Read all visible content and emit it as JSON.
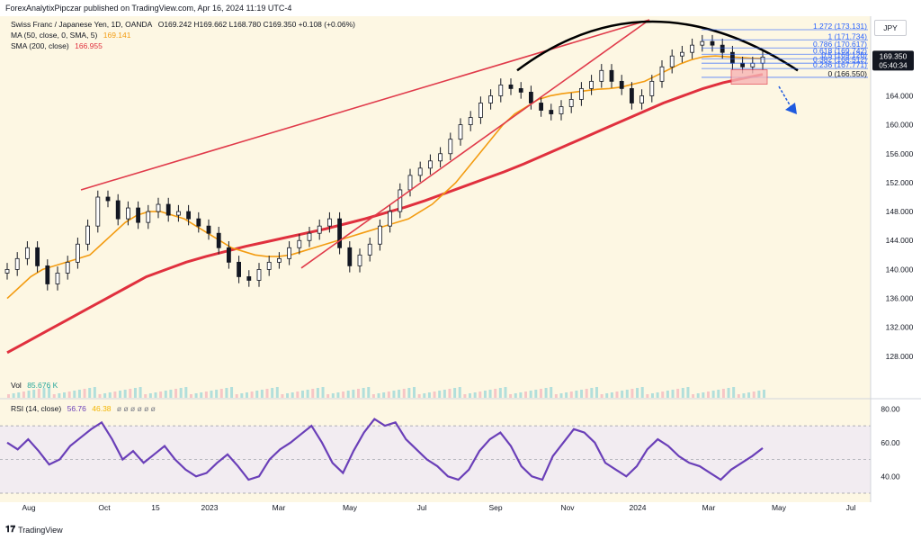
{
  "topline": "ForexAnalytixPipczar published on TradingView.com, Apr 16, 2024 11:19 UTC-4",
  "legend": {
    "symbol_line": "Swiss Franc / Japanese Yen, 1D, OANDA",
    "ohlc": "O169.242  H169.662  L168.780  C169.350  +0.108 (+0.06%)",
    "ma50_label": "MA (50, close, 0, SMA, 5)",
    "ma50_value": "169.141",
    "sma200_label": "SMA (200, close)",
    "sma200_value": "166.955",
    "vol_label": "Vol",
    "vol_value": "85.676 K",
    "rsi_label": "RSI (14, close)",
    "rsi_value_1": "56.76",
    "rsi_value_2": "46.38",
    "rsi_extra": "ø ø ø ø ø ø"
  },
  "currency_button": "JPY",
  "price_label": "169.350",
  "countdown_label": "05:40:34",
  "footer_text": "TradingView",
  "colors": {
    "price_bars": "#131722",
    "ma50": "#f39c12",
    "sma200": "#e0303e",
    "channel": "#e03a4a",
    "arc": "#000000",
    "rsi": "#6a3fb8",
    "rsi_band": "#ede7f6",
    "fib": "#2962ff",
    "arrow": "#1e5adf",
    "background": "#fdf7e3"
  },
  "fib_levels": [
    {
      "ratio": "1.272",
      "price": 173.131,
      "label": "1.272 (173.131)"
    },
    {
      "ratio": "1",
      "price": 171.734,
      "label": "1 (171.734)"
    },
    {
      "ratio": "0.786",
      "price": 170.617,
      "label": "0.786 (170.617)"
    },
    {
      "ratio": "0.618",
      "price": 169.742,
      "label": "0.618 (169.742)"
    },
    {
      "ratio": "0.5",
      "price": 169.126,
      "label": "0.5 (169.126)"
    },
    {
      "ratio": "0.382",
      "price": 168.512,
      "label": "0.382 (168.512)"
    },
    {
      "ratio": "0.236",
      "price": 167.771,
      "label": "0.236 (167.771)"
    },
    {
      "ratio": "0",
      "price": 166.55,
      "label": "0 (166.550)"
    }
  ],
  "chart_data": {
    "type": "candlestick",
    "title": "Swiss Franc / Japanese Yen, 1D, OANDA",
    "x_ticks": [
      "Aug",
      "Oct",
      "15",
      "2023",
      "Mar",
      "May",
      "Jul",
      "Sep",
      "Nov",
      "2024",
      "Mar",
      "May",
      "Jul"
    ],
    "y_ticks": [
      "128.000",
      "132.000",
      "136.000",
      "140.000",
      "144.000",
      "148.000",
      "152.000",
      "156.000",
      "160.000",
      "164.000"
    ],
    "ylim": [
      125,
      175
    ],
    "rsi_ticks": [
      "40.00",
      "60.00",
      "80.00"
    ],
    "rsi_ylim": [
      30,
      85
    ],
    "close": [
      140,
      141.5,
      143,
      140.5,
      138,
      139.5,
      141,
      143.5,
      146,
      150,
      149.5,
      147,
      148.5,
      146.5,
      148,
      149,
      147.5,
      148,
      147,
      146,
      145,
      143,
      141,
      139,
      138.5,
      140,
      141,
      141.5,
      143,
      144,
      145,
      146,
      147,
      143,
      140.5,
      142,
      143.5,
      146,
      148,
      151,
      153,
      154,
      155,
      156,
      158,
      160,
      161,
      163,
      164,
      165.5,
      165,
      164.5,
      163,
      162,
      161.5,
      162.5,
      163.5,
      165,
      166,
      167.5,
      166,
      165,
      163,
      164,
      166,
      168,
      169.5,
      170,
      171,
      171.5,
      171,
      170,
      168.5,
      168,
      168.5,
      169.35
    ],
    "ma50": [
      136,
      137.5,
      139,
      140,
      140.5,
      141,
      141.5,
      142,
      143.5,
      145,
      146.5,
      147.5,
      148,
      148,
      147.5,
      147,
      146,
      145,
      144,
      143,
      142.5,
      142,
      141.8,
      141.8,
      142,
      142.5,
      143,
      143.5,
      144,
      144.5,
      145,
      145.5,
      146,
      146.5,
      147,
      148,
      149,
      150.5,
      152,
      154,
      156,
      158,
      160,
      161.5,
      162.5,
      163.5,
      164,
      164.3,
      164.5,
      164.7,
      164.9,
      165,
      165.2,
      165.6,
      166,
      166.8,
      167.6,
      168.4,
      169,
      169.4,
      169.5,
      169.4,
      169.3,
      169.2,
      169.141
    ],
    "sma200": [
      128.5,
      130,
      131.5,
      133,
      134.5,
      136,
      137.5,
      139,
      140,
      141,
      141.8,
      142.5,
      143.2,
      143.8,
      144.4,
      145,
      145.6,
      146.3,
      147,
      147.8,
      148.6,
      149.5,
      150.5,
      151.5,
      152.5,
      153.5,
      154.6,
      155.8,
      157,
      158.2,
      159.4,
      160.6,
      161.8,
      163,
      164,
      165,
      165.8,
      166.4,
      166.955
    ],
    "rsi": [
      60,
      56,
      62,
      55,
      47,
      50,
      58,
      63,
      68,
      72,
      62,
      50,
      55,
      48,
      53,
      58,
      50,
      44,
      40,
      42,
      48,
      53,
      46,
      38,
      40,
      50,
      56,
      60,
      65,
      70,
      60,
      48,
      42,
      55,
      66,
      74,
      70,
      72,
      62,
      56,
      50,
      46,
      40,
      38,
      44,
      55,
      62,
      66,
      58,
      46,
      40,
      38,
      52,
      60,
      68,
      66,
      60,
      48,
      44,
      40,
      46,
      56,
      62,
      58,
      52,
      48,
      46,
      42,
      38,
      44,
      48,
      52,
      56.76
    ]
  }
}
